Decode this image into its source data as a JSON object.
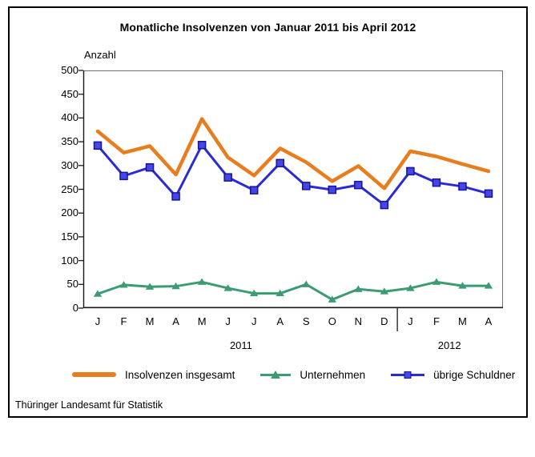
{
  "frame": {
    "title": "Monatliche Insolvenzen von Januar 2011 bis April 2012",
    "footer": "Thüringer Landesamt für Statistik"
  },
  "chart_data": {
    "type": "line",
    "title": "Monatliche Insolvenzen von Januar 2011 bis April 2012",
    "xlabel": "",
    "ylabel": "Anzahl",
    "ylim": [
      0,
      500
    ],
    "ytick_step": 50,
    "grid": false,
    "legend_position": "bottom",
    "x_months": [
      "J",
      "F",
      "M",
      "A",
      "M",
      "J",
      "J",
      "A",
      "S",
      "O",
      "N",
      "D",
      "J",
      "F",
      "M",
      "A"
    ],
    "year_groups": [
      {
        "label": "2011",
        "start_index": 0,
        "end_index": 11
      },
      {
        "label": "2012",
        "start_index": 12,
        "end_index": 15
      }
    ],
    "series": [
      {
        "name": "Insolvenzen insgesamt",
        "color": "#E87D1E",
        "marker": "none",
        "line_width": 4.5,
        "values": [
          372,
          327,
          341,
          281,
          398,
          317,
          279,
          336,
          307,
          267,
          299,
          252,
          330,
          319,
          303,
          288
        ]
      },
      {
        "name": "Unternehmen",
        "color": "#3C9B72",
        "marker": "triangle",
        "line_width": 3,
        "values": [
          30,
          49,
          45,
          46,
          55,
          42,
          31,
          31,
          50,
          18,
          40,
          35,
          42,
          55,
          47,
          47
        ]
      },
      {
        "name": "übrige Schuldner",
        "color": "#2A2AD8",
        "marker": "square",
        "marker_fill": "#4545E8",
        "marker_stroke": "#15159A",
        "line_width": 3,
        "values": [
          342,
          278,
          296,
          235,
          343,
          275,
          248,
          305,
          257,
          249,
          259,
          217,
          288,
          264,
          256,
          241
        ]
      }
    ]
  }
}
